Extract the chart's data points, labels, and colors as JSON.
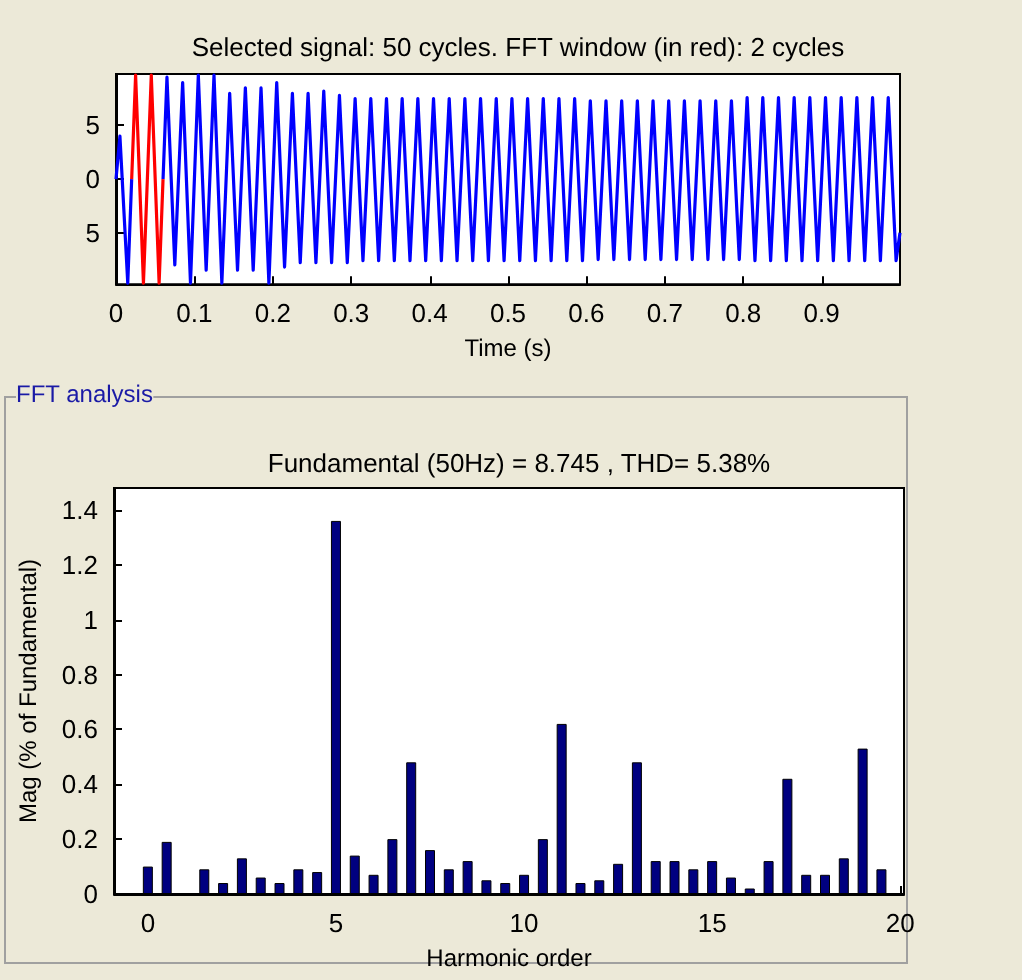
{
  "chart_data": [
    {
      "type": "line",
      "title": "Selected signal: 50 cycles. FFT window (in red): 2 cycles",
      "xlabel": "Time (s)",
      "series": [
        {
          "color": "#0000ff",
          "x": [
            0,
            0.005,
            0.015,
            0.02,
            0.04,
            0.06,
            0.065,
            0.075,
            0.085,
            0.095,
            0.105,
            0.115,
            0.125,
            0.135,
            0.145,
            0.155,
            0.165,
            0.175,
            0.185,
            0.195,
            0.205,
            0.215,
            0.225,
            0.235,
            0.245,
            0.255,
            0.265,
            0.275,
            0.285,
            0.295,
            0.305,
            0.315,
            0.325,
            0.335,
            0.345,
            0.355,
            0.365,
            0.375,
            0.385,
            0.395,
            0.405,
            0.415,
            0.425,
            0.435,
            0.445,
            0.455,
            0.465,
            0.475,
            0.485,
            0.495,
            0.505,
            0.515,
            0.525,
            0.535,
            0.545,
            0.555,
            0.565,
            0.575,
            0.585,
            0.595,
            0.605,
            0.615,
            0.625,
            0.635,
            0.645,
            0.655,
            0.665,
            0.675,
            0.685,
            0.695,
            0.705,
            0.715,
            0.725,
            0.735,
            0.745,
            0.755,
            0.765,
            0.775,
            0.785,
            0.795,
            0.805,
            0.815,
            0.825,
            0.835,
            0.845,
            0.855,
            0.865,
            0.875,
            0.885,
            0.895,
            0.905,
            0.915,
            0.925,
            0.935,
            0.945,
            0.955,
            0.965,
            0.975,
            0.985,
            0.995,
            1
          ],
          "values": [
            0,
            4,
            -9.7,
            0,
            null,
            0,
            9.5,
            -8,
            9,
            -9.7,
            9.7,
            -8.5,
            9.7,
            -9.7,
            8,
            -8.5,
            8.5,
            -8.5,
            8.5,
            -9.7,
            9,
            -8.2,
            8,
            -7.8,
            8,
            -7.8,
            8.2,
            -7.8,
            7.8,
            -7.8,
            7.5,
            -7.6,
            7.5,
            -7.6,
            7.5,
            -7.6,
            7.5,
            -7.6,
            7.5,
            -7.6,
            7.5,
            -7.6,
            7.5,
            -7.6,
            7.5,
            -7.6,
            7.5,
            -7.6,
            7.5,
            -7.6,
            7.5,
            -7.6,
            7.5,
            -7.6,
            7.5,
            -7.6,
            7.5,
            -7.6,
            7.5,
            -7.6,
            7.3,
            -7.5,
            7.3,
            -7.5,
            7.3,
            -7.5,
            7.3,
            -7.5,
            7.3,
            -7.5,
            7.3,
            -7.5,
            7.3,
            -7.5,
            7.3,
            -7.5,
            7.3,
            -7.5,
            7.3,
            -7.5,
            7.6,
            -7.6,
            7.6,
            -7.6,
            7.6,
            -7.6,
            7.6,
            -7.6,
            7.6,
            -7.6,
            7.6,
            -7.6,
            7.6,
            -7.6,
            7.6,
            -7.6,
            7.6,
            -7.6,
            7.6,
            -7.6,
            -5
          ]
        },
        {
          "color": "#ff0000",
          "x": [
            0.02,
            0.025,
            0.035,
            0.045,
            0.055,
            0.06
          ],
          "values": [
            0,
            9.7,
            -9.7,
            9.7,
            -9.7,
            0
          ]
        }
      ],
      "xlim": [
        0,
        1
      ],
      "xticks": [
        0,
        0.1,
        0.2,
        0.3,
        0.4,
        0.5,
        0.6,
        0.7,
        0.8,
        0.9
      ],
      "ylim": [
        -9.8,
        9.8
      ],
      "yticks": [
        {
          "value": -5,
          "label": "5"
        },
        0,
        5
      ]
    },
    {
      "type": "bar",
      "title": "Fundamental (50Hz) = 8.745 , THD= 5.38%",
      "annotations": [
        "FFT analysis"
      ],
      "xlabel": "Harmonic order",
      "ylabel": "Mag (% of Fundamental)",
      "color": "#000080",
      "x": [
        0,
        0.5,
        1,
        1.5,
        2,
        2.5,
        3,
        3.5,
        4,
        4.5,
        5,
        5.5,
        6,
        6.5,
        7,
        7.5,
        8,
        8.5,
        9,
        9.5,
        10,
        10.5,
        11,
        11.5,
        12,
        12.5,
        13,
        13.5,
        14,
        14.5,
        15,
        15.5,
        16,
        16.5,
        17,
        17.5,
        18,
        18.5,
        19,
        19.5
      ],
      "values": [
        0.1,
        0.19,
        null,
        0.09,
        0.04,
        0.13,
        0.06,
        0.04,
        0.09,
        0.08,
        1.36,
        0.14,
        0.07,
        0.2,
        0.48,
        0.16,
        0.09,
        0.12,
        0.05,
        0.04,
        0.07,
        0.2,
        0.62,
        0.04,
        0.05,
        0.11,
        0.48,
        0.12,
        0.12,
        0.09,
        0.12,
        0.06,
        0.02,
        0.12,
        0.42,
        0.07,
        0.07,
        0.13,
        0.53,
        0.09
      ],
      "xlim": [
        -0.9,
        20.1
      ],
      "xticks": [
        0,
        5,
        10,
        15,
        20
      ],
      "ylim": [
        0,
        1.48
      ],
      "yticks": [
        0,
        0.2,
        0.4,
        0.6,
        0.8,
        1,
        1.2,
        1.4
      ]
    }
  ]
}
